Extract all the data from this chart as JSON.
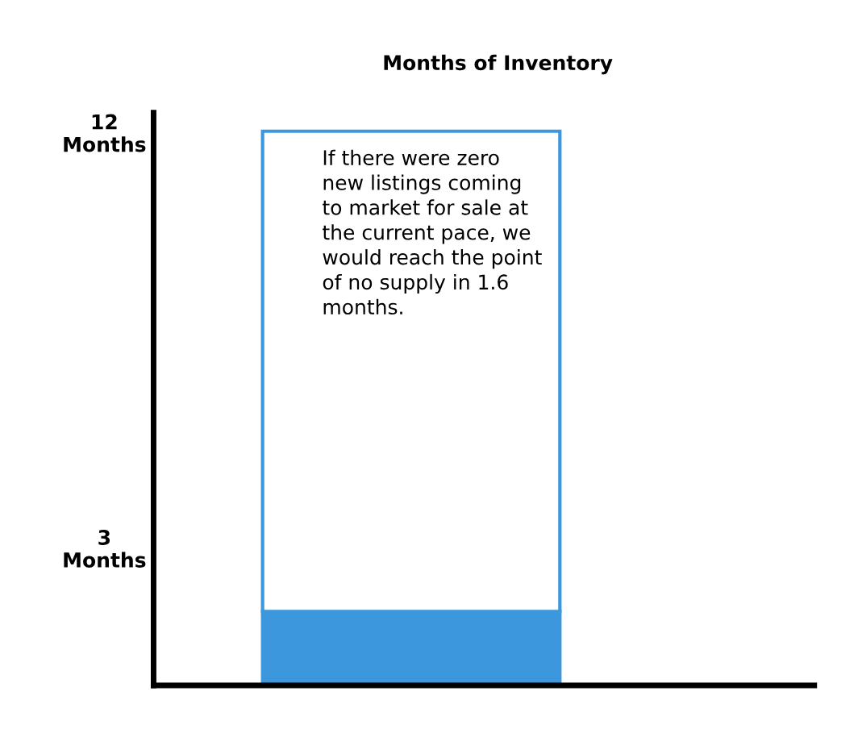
{
  "chart_data": {
    "type": "bar",
    "title": "Months of Inventory",
    "categories": [
      null
    ],
    "stacked": true,
    "series": [
      {
        "color": "#3c97dc",
        "values": [
          1.6
        ]
      },
      {
        "color": "#ffffff",
        "values": [
          10.4
        ]
      }
    ],
    "ylim": [
      0,
      12.4
    ],
    "yticks": [
      {
        "value": 3,
        "label": "3\nMonths"
      },
      {
        "value": 12,
        "label": "12\nMonths"
      }
    ],
    "grid": false,
    "legend": false,
    "annotations": [
      "If there were zero\nnew listings coming\nto market for sale at\nthe current pace, we\nwould reach the point\nof no supply in 1.6\nmonths."
    ]
  }
}
